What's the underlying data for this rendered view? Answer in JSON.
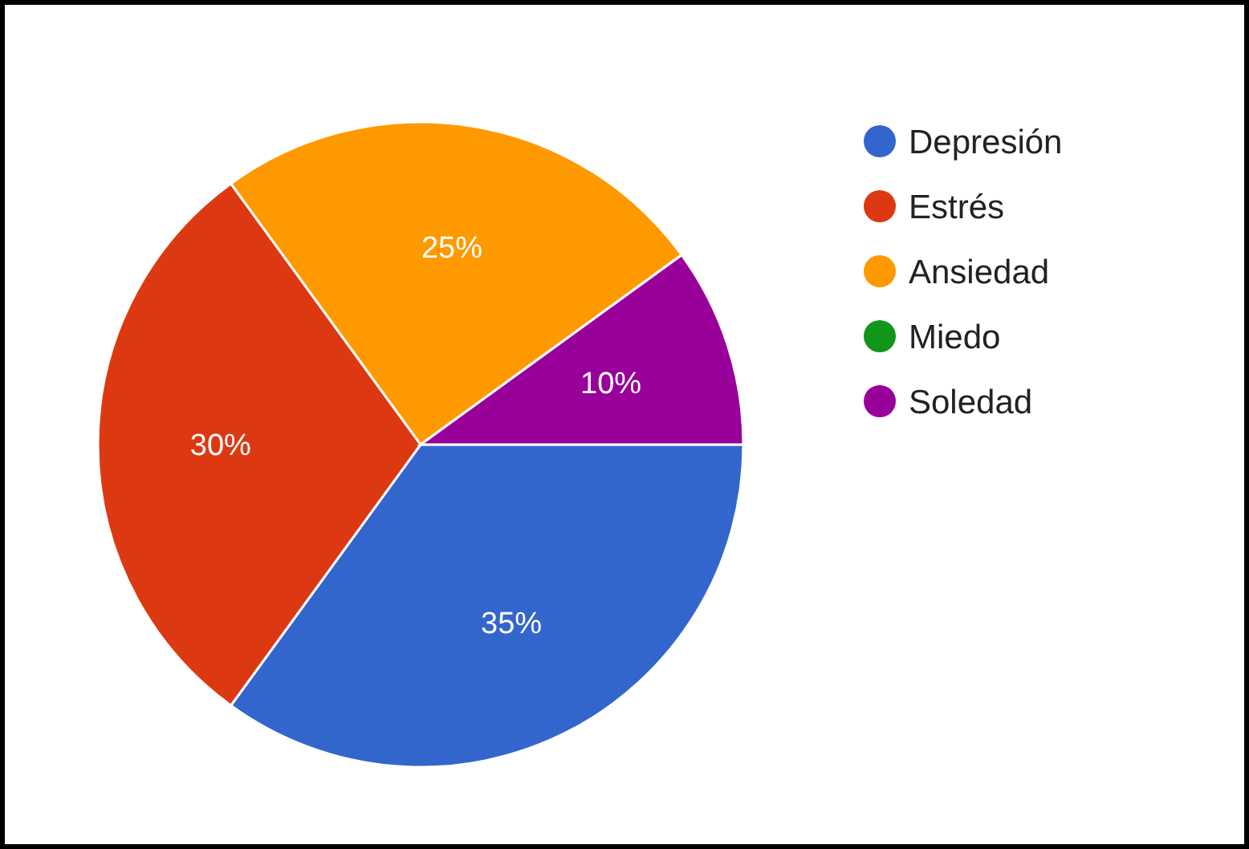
{
  "chart_data": {
    "type": "pie",
    "categories": [
      "Depresión",
      "Estrés",
      "Ansiedad",
      "Miedo",
      "Soledad"
    ],
    "values": [
      35,
      30,
      25,
      0,
      10
    ],
    "colors": [
      "#3366cc",
      "#dc3912",
      "#ff9900",
      "#109618",
      "#990099"
    ],
    "value_labels": [
      "35%",
      "30%",
      "25%",
      null,
      "10%"
    ],
    "legend": "top right"
  }
}
